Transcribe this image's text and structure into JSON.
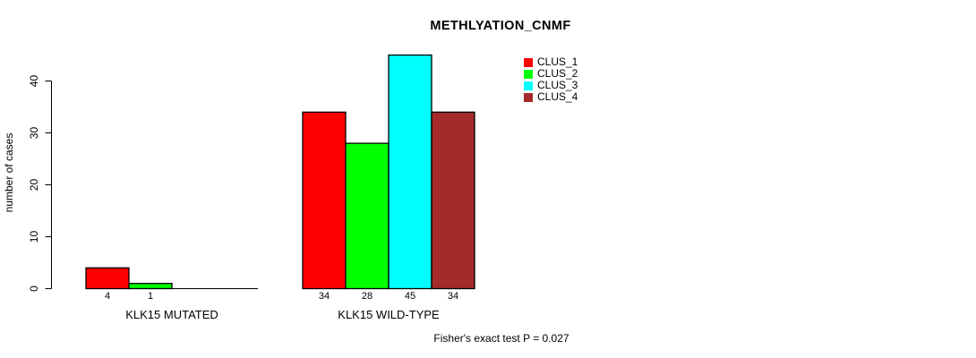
{
  "window": {
    "background_color": "#ffffff",
    "text_color": "#000000"
  },
  "chart_data": {
    "type": "bar",
    "title": "METHLYATION_CNMF",
    "ylabel": "number of cases",
    "xlabel": "",
    "yticks": [
      0,
      10,
      20,
      30,
      40
    ],
    "ylim": [
      0,
      45
    ],
    "grid": false,
    "legend_position": "top-right-inside",
    "categories": [
      "KLK15 MUTATED",
      "KLK15 WILD-TYPE"
    ],
    "series": [
      {
        "name": "CLUS_1",
        "color": "#ff0000",
        "values": [
          4,
          34
        ]
      },
      {
        "name": "CLUS_2",
        "color": "#00ff00",
        "values": [
          1,
          28
        ]
      },
      {
        "name": "CLUS_3",
        "color": "#00ffff",
        "values": [
          0,
          45
        ]
      },
      {
        "name": "CLUS_4",
        "color": "#a52a2a",
        "values": [
          0,
          34
        ]
      }
    ],
    "value_labels": [
      [
        "4",
        "1",
        "",
        ""
      ],
      [
        "34",
        "28",
        "45",
        "34"
      ]
    ],
    "footer": "Fisher's exact test P = 0.027"
  }
}
